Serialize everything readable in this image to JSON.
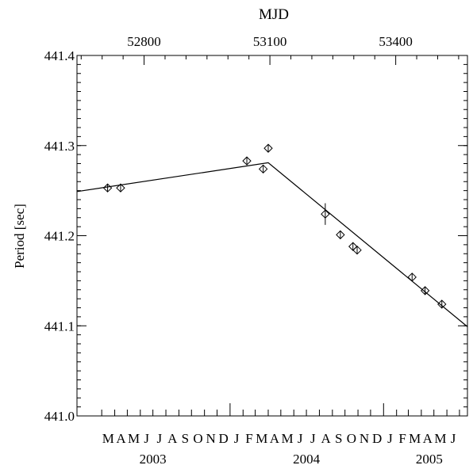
{
  "chart_data": {
    "type": "scatter",
    "title": "",
    "ylabel": "Period [sec]",
    "ylim": [
      441.0,
      441.4
    ],
    "y_ticks": [
      "441.0",
      "441.1",
      "441.2",
      "441.3",
      "441.4"
    ],
    "top_axis": {
      "label": "MJD",
      "ticks": [
        "52800",
        "53100",
        "53400"
      ]
    },
    "month_labels": [
      "M",
      "A",
      "M",
      "J",
      "J",
      "A",
      "S",
      "O",
      "N",
      "D",
      "J",
      "F",
      "M",
      "A",
      "M",
      "J",
      "J",
      "A",
      "S",
      "O",
      "N",
      "D",
      "J",
      "F",
      "M",
      "A",
      "M",
      "J"
    ],
    "year_labels": [
      "2003",
      "2004",
      "2005"
    ],
    "points": [
      {
        "date": "2003-03-15",
        "period": 441.253
      },
      {
        "date": "2003-04-15",
        "period": 441.253
      },
      {
        "date": "2004-02-10",
        "period": 441.283
      },
      {
        "date": "2004-03-20",
        "period": 441.274
      },
      {
        "date": "2004-04-01",
        "period": 441.297
      },
      {
        "date": "2004-08-15",
        "period": 441.224,
        "err": 0.012
      },
      {
        "date": "2004-09-20",
        "period": 441.201
      },
      {
        "date": "2004-10-20",
        "period": 441.188
      },
      {
        "date": "2004-10-30",
        "period": 441.184
      },
      {
        "date": "2005-03-10",
        "period": 441.154
      },
      {
        "date": "2005-04-10",
        "period": 441.139
      },
      {
        "date": "2005-05-20",
        "period": 441.124
      }
    ],
    "fit_line": [
      {
        "date": "2003-01-01",
        "period": 441.249
      },
      {
        "date": "2004-04-01",
        "period": 441.281
      },
      {
        "date": "2005-07-20",
        "period": 441.099
      }
    ]
  }
}
